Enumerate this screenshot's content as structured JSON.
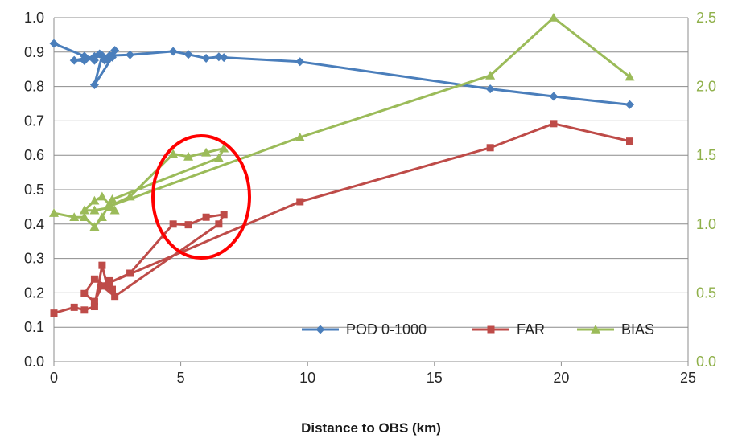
{
  "chart_data": {
    "type": "line",
    "xlabel": "Distance to OBS (km)",
    "xlim": [
      0,
      25
    ],
    "x_ticks": [
      "0",
      "5",
      "10",
      "15",
      "20",
      "25"
    ],
    "ylim": [
      0.0,
      1.0
    ],
    "y_ticks": [
      "0.0",
      "0.1",
      "0.2",
      "0.3",
      "0.4",
      "0.5",
      "0.6",
      "0.7",
      "0.8",
      "0.9",
      "1.0"
    ],
    "y2lim": [
      0.0,
      2.5
    ],
    "y2_ticks": [
      "0.0",
      "0.5",
      "1.0",
      "1.5",
      "2.0",
      "2.5"
    ],
    "grid": "horizontal",
    "legend_position": "bottom-right",
    "annotation": "red ellipse highlighting points near 4.5-7 km",
    "series": [
      {
        "name": "POD 0-1000",
        "axis": "left",
        "color": "#4A7EBB",
        "marker": "diamond",
        "points": [
          [
            0,
            0.925
          ],
          [
            1.2,
            0.888
          ],
          [
            1.6,
            0.876
          ],
          [
            1.8,
            0.895
          ],
          [
            2.0,
            0.876
          ],
          [
            2.1,
            0.88
          ],
          [
            2.3,
            0.89
          ],
          [
            2.4,
            0.905
          ],
          [
            2.3,
            0.885
          ],
          [
            1.6,
            0.805
          ],
          [
            1.9,
            0.89
          ],
          [
            1.2,
            0.875
          ],
          [
            0.8,
            0.876
          ],
          [
            1.6,
            0.887
          ],
          [
            2.2,
            0.89
          ],
          [
            3.0,
            0.892
          ],
          [
            4.7,
            0.902
          ],
          [
            5.3,
            0.893
          ],
          [
            6.0,
            0.882
          ],
          [
            6.5,
            0.886
          ],
          [
            6.7,
            0.884
          ],
          [
            9.7,
            0.872
          ],
          [
            17.2,
            0.793
          ],
          [
            19.7,
            0.771
          ],
          [
            22.7,
            0.747
          ]
        ]
      },
      {
        "name": "FAR",
        "axis": "left",
        "color": "#BE4B48",
        "marker": "square",
        "points": [
          [
            0,
            0.141
          ],
          [
            0.8,
            0.158
          ],
          [
            1.2,
            0.15
          ],
          [
            1.6,
            0.16
          ],
          [
            1.9,
            0.28
          ],
          [
            2.1,
            0.22
          ],
          [
            2.2,
            0.235
          ],
          [
            2.3,
            0.21
          ],
          [
            1.6,
            0.24
          ],
          [
            1.2,
            0.198
          ],
          [
            1.6,
            0.175
          ],
          [
            1.9,
            0.22
          ],
          [
            2.4,
            0.19
          ],
          [
            6.5,
            0.4
          ],
          [
            6.7,
            0.428
          ],
          [
            6.0,
            0.42
          ],
          [
            5.3,
            0.398
          ],
          [
            4.7,
            0.4
          ],
          [
            3.0,
            0.257
          ],
          [
            2.2,
            0.23
          ],
          [
            9.7,
            0.465
          ],
          [
            17.2,
            0.622
          ],
          [
            19.7,
            0.692
          ],
          [
            22.7,
            0.641
          ]
        ]
      },
      {
        "name": "BIAS",
        "axis": "right",
        "color": "#9BBB59",
        "marker": "triangle",
        "points": [
          [
            0,
            1.08
          ],
          [
            0.8,
            1.05
          ],
          [
            1.2,
            1.05
          ],
          [
            1.6,
            0.98
          ],
          [
            1.9,
            1.05
          ],
          [
            2.2,
            1.15
          ],
          [
            2.4,
            1.1
          ],
          [
            1.9,
            1.2
          ],
          [
            1.6,
            1.17
          ],
          [
            1.2,
            1.1
          ],
          [
            1.6,
            1.1
          ],
          [
            2.2,
            1.12
          ],
          [
            2.3,
            1.18
          ],
          [
            6.5,
            1.48
          ],
          [
            6.7,
            1.55
          ],
          [
            6.0,
            1.52
          ],
          [
            5.3,
            1.49
          ],
          [
            4.7,
            1.51
          ],
          [
            3.0,
            1.2
          ],
          [
            2.2,
            1.13
          ],
          [
            9.7,
            1.63
          ],
          [
            17.2,
            2.08
          ],
          [
            19.7,
            2.5
          ],
          [
            22.7,
            2.07
          ]
        ]
      }
    ]
  }
}
